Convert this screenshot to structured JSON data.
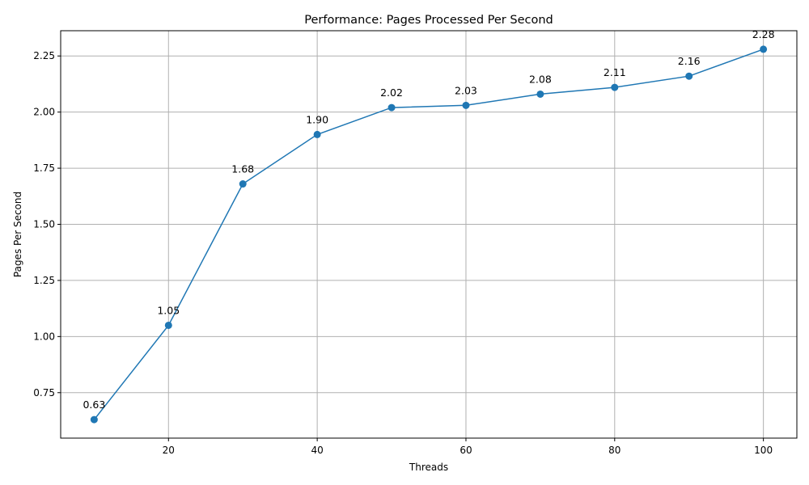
{
  "chart_data": {
    "type": "line",
    "title": "Performance: Pages Processed Per Second",
    "xlabel": "Threads",
    "ylabel": "Pages Per Second",
    "x": [
      10,
      20,
      30,
      40,
      50,
      60,
      70,
      80,
      90,
      100
    ],
    "series": [
      {
        "values": [
          0.63,
          1.05,
          1.68,
          1.9,
          2.02,
          2.03,
          2.08,
          2.11,
          2.16,
          2.28
        ],
        "color": "#1f77b4",
        "marker": "circle"
      }
    ],
    "data_labels": [
      "0.63",
      "1.05",
      "1.68",
      "1.90",
      "2.02",
      "2.03",
      "2.08",
      "2.11",
      "2.16",
      "2.28"
    ],
    "xlim": [
      5.5,
      104.5
    ],
    "ylim": [
      0.5475,
      2.3625
    ],
    "xticks": [
      20,
      40,
      60,
      80,
      100
    ],
    "xtick_labels": [
      "20",
      "40",
      "60",
      "80",
      "100"
    ],
    "yticks": [
      0.75,
      1.0,
      1.25,
      1.5,
      1.75,
      2.0,
      2.25
    ],
    "ytick_labels": [
      "0.75",
      "1.00",
      "1.25",
      "1.50",
      "1.75",
      "2.00",
      "2.25"
    ],
    "grid": true,
    "legend": false
  }
}
